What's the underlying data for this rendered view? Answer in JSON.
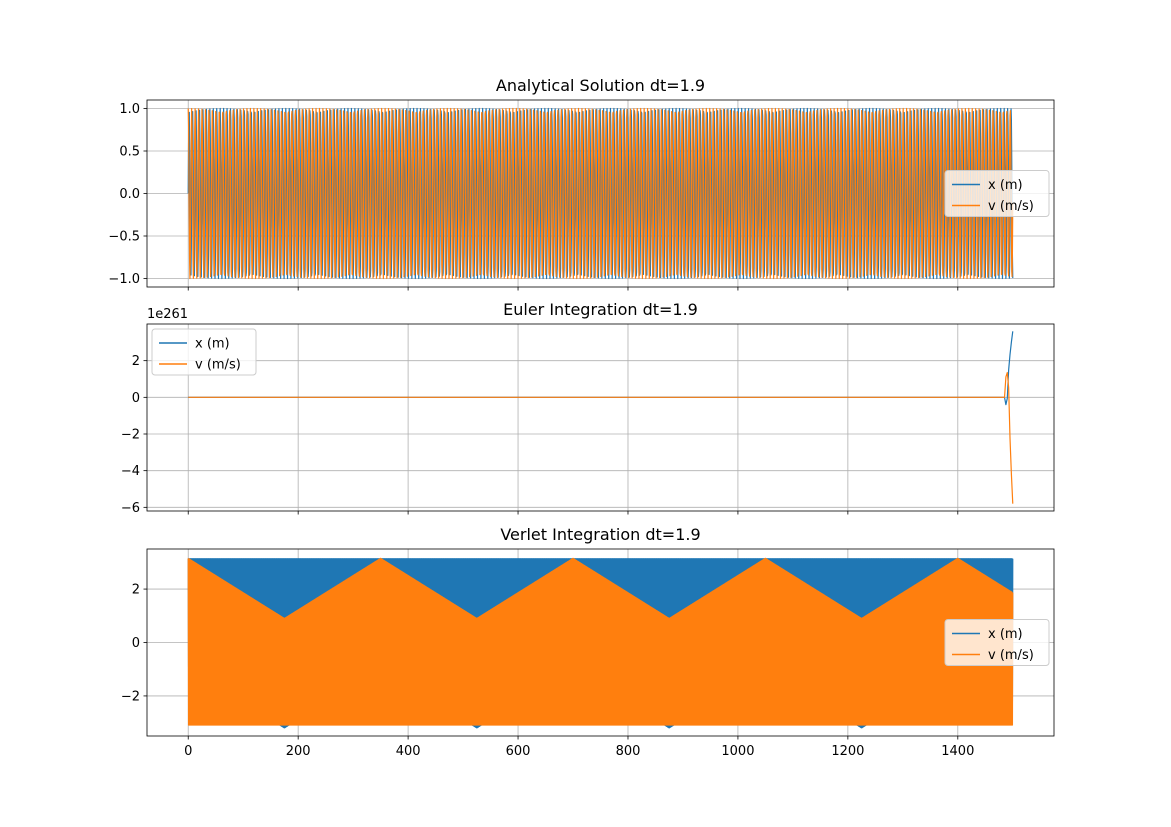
{
  "figure": {
    "background": "#ffffff"
  },
  "chart_data": [
    {
      "type": "line",
      "title": "Analytical Solution dt=1.9",
      "xlabel": "",
      "ylabel": "",
      "xlim": [
        -75,
        1575
      ],
      "ylim": [
        -1.1,
        1.1
      ],
      "xticks": [
        0,
        200,
        400,
        600,
        800,
        1000,
        1200,
        1400
      ],
      "show_xtick_labels": false,
      "yticks": [
        -1.0,
        -0.5,
        0.0,
        0.5,
        1.0
      ],
      "ytick_labels": [
        "−1.0",
        "−0.5",
        "0.0",
        "0.5",
        "1.0"
      ],
      "y_offset_label": "",
      "grid": true,
      "legend": "center-right",
      "series": [
        {
          "name": "x (m)",
          "color": "#1f77b4",
          "model": "analytic_x",
          "envelope": 1.0,
          "omega": 1.0
        },
        {
          "name": "v (m/s)",
          "color": "#ff7f0e",
          "model": "analytic_v",
          "envelope": 1.0,
          "omega": 1.0
        }
      ],
      "x_range": [
        0,
        1500
      ],
      "dt": 1.9
    },
    {
      "type": "line",
      "title": "Euler Integration dt=1.9",
      "xlabel": "",
      "ylabel": "",
      "xlim": [
        -75,
        1575
      ],
      "ylim": [
        -6.2,
        4.0
      ],
      "xticks": [
        0,
        200,
        400,
        600,
        800,
        1000,
        1200,
        1400
      ],
      "show_xtick_labels": false,
      "yticks": [
        -6,
        -4,
        -2,
        0,
        2
      ],
      "ytick_labels": [
        "−6",
        "−4",
        "−2",
        "0",
        "2"
      ],
      "y_offset_label": "1e261",
      "grid": true,
      "legend": "upper-left",
      "series": [
        {
          "name": "x (m)",
          "color": "#1f77b4",
          "model": "euler_x",
          "final_value": 3.6
        },
        {
          "name": "v (m/s)",
          "color": "#ff7f0e",
          "model": "euler_v",
          "final_value": -5.8
        }
      ],
      "x_range": [
        0,
        1500
      ],
      "dt": 1.9
    },
    {
      "type": "line",
      "title": "Verlet Integration dt=1.9",
      "xlabel": "",
      "ylabel": "",
      "xlim": [
        -75,
        1575
      ],
      "ylim": [
        -3.5,
        3.5
      ],
      "xticks": [
        0,
        200,
        400,
        600,
        800,
        1000,
        1200,
        1400
      ],
      "xtick_labels": [
        "0",
        "200",
        "400",
        "600",
        "800",
        "1000",
        "1200",
        "1400"
      ],
      "show_xtick_labels": true,
      "yticks": [
        -2,
        0,
        2
      ],
      "ytick_labels": [
        "−2",
        "0",
        "2"
      ],
      "y_offset_label": "",
      "grid": true,
      "legend": "center-right",
      "series": [
        {
          "name": "x (m)",
          "color": "#1f77b4",
          "model": "verlet_x",
          "max_amplitude": 3.2,
          "min_amplitude": 0.9
        },
        {
          "name": "v (m/s)",
          "color": "#ff7f0e",
          "model": "verlet_v",
          "max_amplitude": 3.15,
          "min_amplitude": 0.9
        }
      ],
      "x_range": [
        0,
        1500
      ],
      "dt": 1.9
    }
  ]
}
